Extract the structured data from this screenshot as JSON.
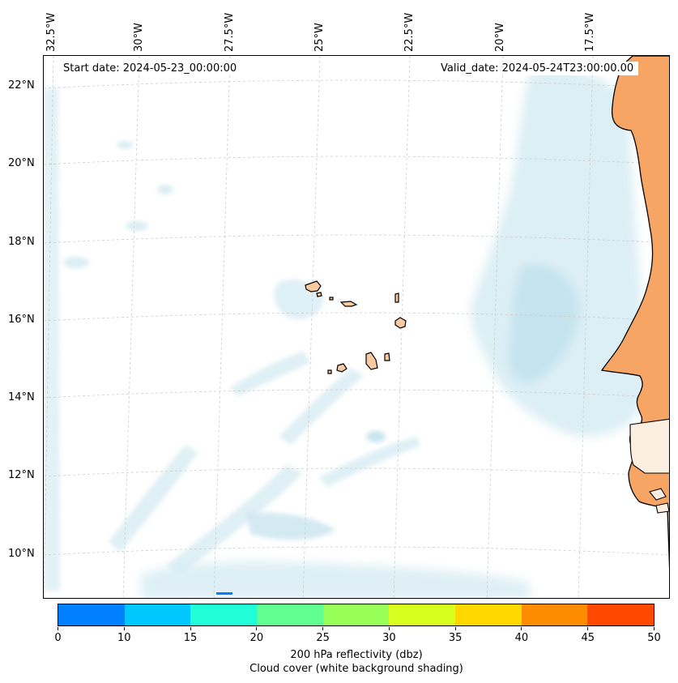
{
  "map": {
    "lon_labels": [
      "32.5°W",
      "30°W",
      "27.5°W",
      "25°W",
      "22.5°W",
      "20°W",
      "17.5°W"
    ],
    "lat_labels": [
      "22°N",
      "20°N",
      "18°N",
      "16°N",
      "14°N",
      "12°N",
      "10°N"
    ],
    "start_date": "Start date: 2024-05-23_00:00:00",
    "valid_date": "Valid_date: 2024-05-24T23:00:00.00",
    "colors": {
      "land": "#f7a565",
      "island_fill": "#f9c9a0",
      "cloud": "#bfe1ec",
      "ocean": "#ffffff",
      "grid": "#cccccc"
    }
  },
  "colorbar": {
    "ticks": [
      "0",
      "10",
      "15",
      "20",
      "25",
      "30",
      "35",
      "40",
      "45",
      "50"
    ],
    "colors": [
      "#0080ff",
      "#00c8ff",
      "#20ffd8",
      "#60ff90",
      "#98ff58",
      "#d8ff20",
      "#ffd800",
      "#ff8c00",
      "#ff4800"
    ],
    "label_line1": "200 hPa reflectivity (dbz)",
    "label_line2": "Cloud cover (white background shading)"
  }
}
